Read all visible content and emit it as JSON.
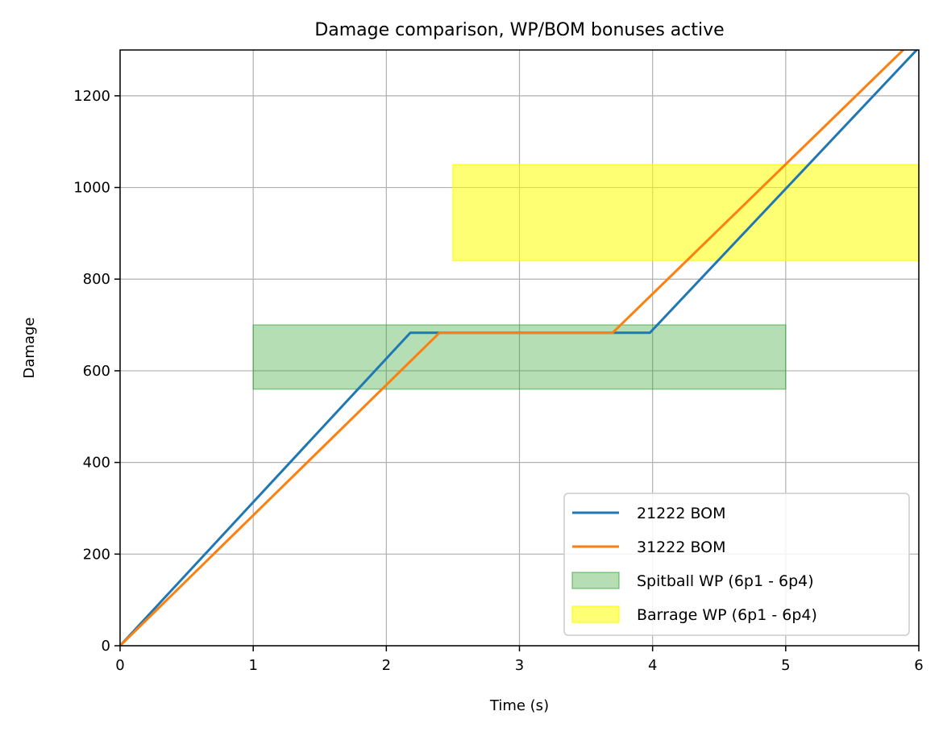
{
  "chart_data": {
    "type": "line",
    "title": "Damage comparison, WP/BOM bonuses active",
    "xlabel": "Time (s)",
    "ylabel": "Damage",
    "xlim": [
      0,
      6
    ],
    "ylim": [
      0,
      1300
    ],
    "xticks": [
      0,
      1,
      2,
      3,
      4,
      5,
      6
    ],
    "yticks": [
      0,
      200,
      400,
      600,
      800,
      1000,
      1200
    ],
    "grid": true,
    "legend_position": "lower-right",
    "series": [
      {
        "name": "21222 BOM",
        "color": "#1f77b4",
        "x": [
          0,
          2.18,
          3.98,
          6.0
        ],
        "y": [
          0,
          683,
          683,
          1305
        ]
      },
      {
        "name": "31222 BOM",
        "color": "#ff7f0e",
        "x": [
          0,
          2.4,
          3.7,
          5.9
        ],
        "y": [
          0,
          683,
          683,
          1305
        ]
      }
    ],
    "bands": [
      {
        "name": "Spitball WP (6p1 - 6p4)",
        "color": "#2ca02c",
        "opacity": 0.35,
        "x": [
          1,
          5
        ],
        "y": [
          560,
          700
        ]
      },
      {
        "name": "Barrage WP (6p1 - 6p4)",
        "color": "#ffff00",
        "opacity": 0.55,
        "x": [
          2.5,
          6
        ],
        "y": [
          840,
          1050
        ]
      }
    ]
  }
}
